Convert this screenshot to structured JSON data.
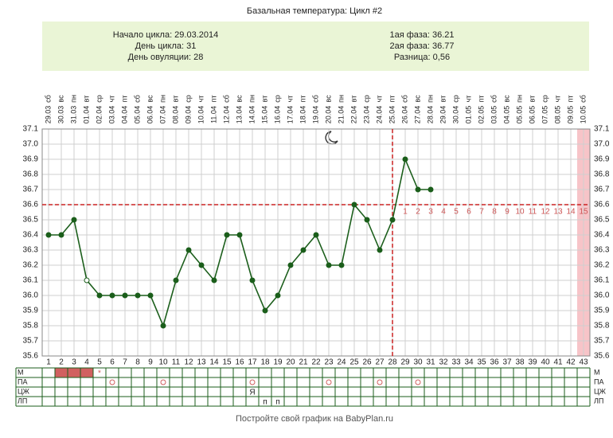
{
  "chart_data": {
    "type": "line",
    "title": "Базальная температура: Цикл #2",
    "info_left": [
      "Начало цикла: 29.03.2014",
      "День цикла: 31",
      "День овуляции: 28"
    ],
    "info_right": [
      "1ая фаза: 36.21",
      "2ая фаза: 36.77",
      "Разница: 0,56"
    ],
    "xlim": [
      0.5,
      43.5
    ],
    "xticks": [
      1,
      2,
      3,
      4,
      5,
      6,
      7,
      8,
      9,
      10,
      11,
      12,
      13,
      14,
      15,
      16,
      17,
      18,
      19,
      20,
      21,
      22,
      23,
      24,
      25,
      26,
      27,
      28,
      29,
      30,
      31,
      32,
      33,
      34,
      35,
      36,
      37,
      38,
      39,
      40,
      41,
      42,
      43
    ],
    "weekday_labels": [
      "сб",
      "вс",
      "пн",
      "вт",
      "ср",
      "чт",
      "пт",
      "сб",
      "вс",
      "пн",
      "вт",
      "ср",
      "чт",
      "пт",
      "сб",
      "вс",
      "пн",
      "вт",
      "ср",
      "чт",
      "пт",
      "сб",
      "вс",
      "пн",
      "вт",
      "ср",
      "чт",
      "пт",
      "сб",
      "вс",
      "пн",
      "вт",
      "ср",
      "чт",
      "пт",
      "сб",
      "вс",
      "пн",
      "вт",
      "ср",
      "чт",
      "пт",
      "сб"
    ],
    "date_labels": [
      "29.03",
      "30.03",
      "31.03",
      "01.04",
      "02.04",
      "03.04",
      "04.04",
      "05.04",
      "06.04",
      "07.04",
      "08.04",
      "09.04",
      "10.04",
      "11.04",
      "12.04",
      "13.04",
      "14.04",
      "15.04",
      "16.04",
      "17.04",
      "18.04",
      "19.04",
      "20.04",
      "21.04",
      "22.04",
      "23.04",
      "24.04",
      "25.04",
      "26.04",
      "27.04",
      "28.04",
      "29.04",
      "30.04",
      "01.05",
      "02.05",
      "03.05",
      "04.05",
      "05.05",
      "06.05",
      "07.05",
      "08.05",
      "09.05",
      "10.05"
    ],
    "ylim": [
      35.6,
      37.1
    ],
    "yticks": [
      {
        "value": 35.6,
        "label": "35.6"
      },
      {
        "value": 35.7,
        "label": "35.7"
      },
      {
        "value": 35.8,
        "label": "35.8"
      },
      {
        "value": 35.9,
        "label": "35.9"
      },
      {
        "value": 36,
        "label": "36.0"
      },
      {
        "value": 36.1,
        "label": "36.1"
      },
      {
        "value": 36.2,
        "label": "36.2"
      },
      {
        "value": 36.3,
        "label": "36.3"
      },
      {
        "value": 36.4,
        "label": "36.4"
      },
      {
        "value": 36.5,
        "label": "36.5"
      },
      {
        "value": 36.6,
        "label": "36.6"
      },
      {
        "value": 36.7,
        "label": "36.7"
      },
      {
        "value": 36.8,
        "label": "36.8"
      },
      {
        "value": 36.9,
        "label": "36.9"
      },
      {
        "value": 37,
        "label": "37.0"
      },
      {
        "value": 37.1,
        "label": "37.1"
      }
    ],
    "grid": true,
    "series": [
      {
        "color": "#1b5e1b",
        "x": [
          1,
          2,
          3,
          4,
          5,
          6,
          7,
          8,
          9,
          10,
          11,
          12,
          13,
          14,
          15,
          16,
          17,
          18,
          19,
          20,
          21,
          22,
          23,
          24,
          25,
          26,
          27,
          28,
          29,
          30,
          31
        ],
        "values": [
          36.4,
          36.4,
          36.5,
          36.1,
          36.0,
          36.0,
          36.0,
          36.0,
          36.0,
          35.8,
          36.1,
          36.3,
          36.2,
          36.1,
          36.4,
          36.4,
          36.1,
          35.9,
          36.0,
          36.2,
          36.3,
          36.4,
          36.2,
          36.2,
          36.6,
          36.5,
          36.3,
          36.5,
          36.9,
          36.7,
          36.7
        ],
        "hollow_x": [
          4
        ]
      }
    ],
    "coverline": 36.6,
    "coverline_color": "#cc2222",
    "ovulation_day": 28,
    "post_ovulation_days": [
      1,
      2,
      3,
      4,
      5,
      6,
      7,
      8,
      9,
      10,
      11,
      12,
      13,
      14,
      15
    ],
    "shaded_x": [
      43
    ],
    "table_rows": [
      {
        "label": "М",
        "filled_days": [
          2,
          3,
          4
        ],
        "marks": [
          {
            "day": 5,
            "text": "*"
          }
        ]
      },
      {
        "label": "ПА",
        "circle_days": [
          6,
          10,
          17,
          23,
          27,
          30
        ]
      },
      {
        "label": "ЦЖ",
        "marks": [
          {
            "day": 17,
            "text": "Я"
          }
        ]
      },
      {
        "label": "ЛП",
        "marks": [
          {
            "day": 18,
            "text": "п"
          },
          {
            "day": 19,
            "text": "п"
          }
        ]
      }
    ],
    "footer": "Постройте свой график на BabyPlan.ru"
  }
}
